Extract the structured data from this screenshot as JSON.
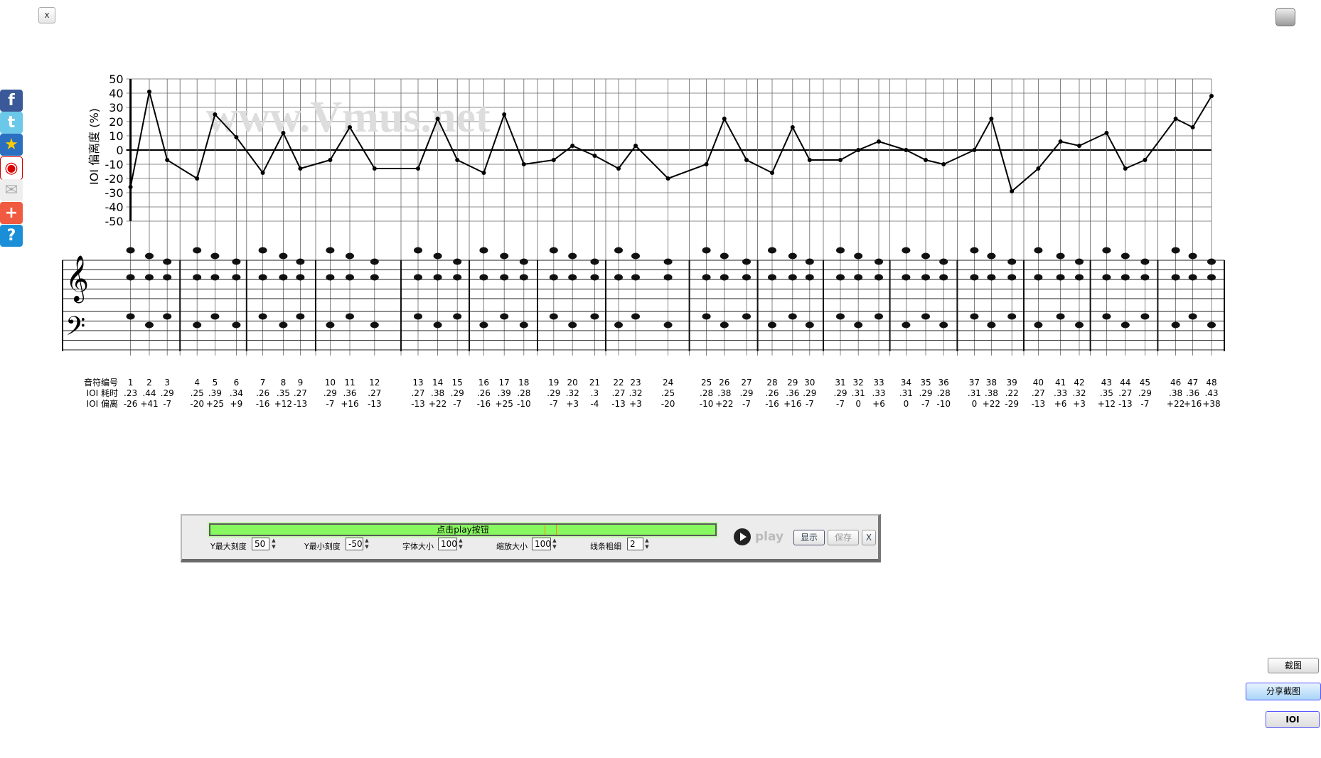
{
  "window": {
    "close_label": "x"
  },
  "social": [
    "facebook-icon",
    "twitter-icon",
    "qzone-star-icon",
    "weibo-icon",
    "email-icon",
    "add-icon",
    "help-icon"
  ],
  "chart_data": {
    "type": "line",
    "watermark": "www.Vmus.net",
    "ylabel": "IOI 偏离度 (%)",
    "ylim": [
      -50,
      50
    ],
    "yticks": [
      50,
      40,
      30,
      20,
      10,
      0,
      -10,
      -20,
      -30,
      -40,
      -50
    ],
    "grid": true,
    "x": [
      1,
      2,
      3,
      4,
      5,
      6,
      7,
      8,
      9,
      10,
      11,
      12,
      13,
      14,
      15,
      16,
      17,
      18,
      19,
      20,
      21,
      22,
      23,
      24,
      25,
      26,
      27,
      28,
      29,
      30,
      31,
      32,
      33,
      34,
      35,
      36,
      37,
      38,
      39,
      40,
      41,
      42,
      43,
      44,
      45,
      46,
      47,
      48
    ],
    "y": [
      -26,
      41,
      -7,
      -20,
      25,
      9,
      -16,
      12,
      -13,
      -7,
      16,
      -13,
      -13,
      22,
      -7,
      -16,
      25,
      -10,
      -7,
      3,
      -4,
      -13,
      3,
      -20,
      -10,
      22,
      -7,
      -16,
      16,
      -7,
      -7,
      0,
      6,
      0,
      -7,
      -10,
      0,
      22,
      -29,
      -13,
      6,
      3,
      12,
      -13,
      -7,
      22,
      16,
      38
    ]
  },
  "table": {
    "row_labels": [
      "音符编号",
      "IOI 耗时",
      "IOI 偏离"
    ],
    "ioi_time": [
      ".23",
      ".44",
      ".29",
      ".25",
      ".39",
      ".34",
      ".26",
      ".35",
      ".27",
      ".29",
      ".36",
      ".27",
      ".27",
      ".38",
      ".29",
      ".26",
      ".39",
      ".28",
      ".29",
      ".32",
      ".3",
      ".27",
      ".32",
      ".25",
      ".28",
      ".38",
      ".29",
      ".26",
      ".36",
      ".29",
      ".29",
      ".31",
      ".33",
      ".31",
      ".29",
      ".28",
      ".31",
      ".38",
      ".22",
      ".27",
      ".33",
      ".32",
      ".35",
      ".27",
      ".29",
      ".38",
      ".36",
      ".43"
    ],
    "ioi_dev": [
      "-26",
      "+41",
      "-7",
      "-20",
      "+25",
      "+9",
      "-16",
      "+12",
      "-13",
      "-7",
      "+16",
      "-13",
      "-13",
      "+22",
      "-7",
      "-16",
      "+25",
      "-10",
      "-7",
      "+3",
      "-4",
      "-13",
      "+3",
      "-20",
      "-10",
      "+22",
      "-7",
      "-16",
      "+16",
      "-7",
      "-7",
      "0",
      "+6",
      "0",
      "-7",
      "-10",
      "0",
      "+22",
      "-29",
      "-13",
      "+6",
      "+3",
      "+12",
      "-13",
      "-7",
      "+22",
      "+16",
      "+38"
    ]
  },
  "panel": {
    "progress_text": "点击play按钮",
    "ymax_label": "Y最大刻度",
    "ymax": "50",
    "ymin_label": "Y最小刻度",
    "ymin": "-50",
    "font_label": "字体大小",
    "font": "100",
    "zoom_label": "缩放大小",
    "zoom": "100",
    "line_label": "线条粗细",
    "line": "2",
    "play_label": "play",
    "show_label": "显示",
    "save_label": "保存",
    "close_label": "X"
  },
  "right": {
    "screenshot": "截图",
    "share": "分享截图",
    "ioi": "IOI"
  }
}
